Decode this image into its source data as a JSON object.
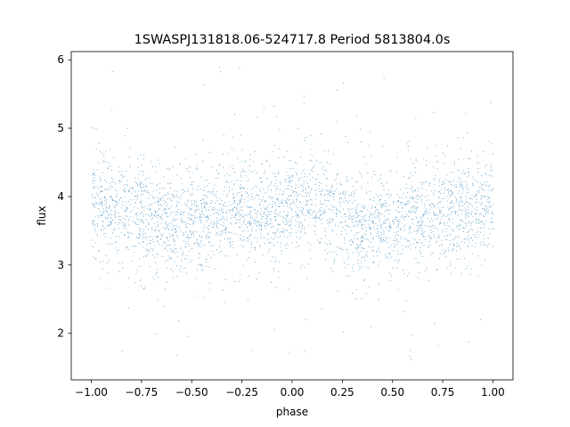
{
  "chart_data": {
    "type": "scatter",
    "title": "1SWASPJ131818.06-524717.8 Period 5813804.0s",
    "xlabel": "phase",
    "ylabel": "flux",
    "xlim": [
      -1.1,
      1.1
    ],
    "ylim": [
      1.32,
      6.12
    ],
    "xticks": [
      -1.0,
      -0.75,
      -0.5,
      -0.25,
      0.0,
      0.25,
      0.5,
      0.75,
      1.0
    ],
    "xtick_labels": [
      "−1.00",
      "−0.75",
      "−0.50",
      "−0.25",
      "0.00",
      "0.25",
      "0.50",
      "0.75",
      "1.00"
    ],
    "yticks": [
      2,
      3,
      4,
      5,
      6
    ],
    "ytick_labels": [
      "2",
      "3",
      "4",
      "5",
      "6"
    ],
    "grid": false,
    "legend": "none",
    "color": "#1f77b4",
    "series": [
      {
        "phase_range": [
          -1.0,
          1.0
        ],
        "baseline_profile": [
          {
            "x": -1.0,
            "y": 3.85
          },
          {
            "x": -0.9,
            "y": 3.9
          },
          {
            "x": -0.8,
            "y": 3.8
          },
          {
            "x": -0.7,
            "y": 3.65
          },
          {
            "x": -0.6,
            "y": 3.6
          },
          {
            "x": -0.5,
            "y": 3.6
          },
          {
            "x": -0.4,
            "y": 3.7
          },
          {
            "x": -0.3,
            "y": 3.75
          },
          {
            "x": -0.2,
            "y": 3.8
          },
          {
            "x": -0.1,
            "y": 3.75
          },
          {
            "x": 0.0,
            "y": 3.9
          },
          {
            "x": 0.1,
            "y": 3.9
          },
          {
            "x": 0.2,
            "y": 3.8
          },
          {
            "x": 0.3,
            "y": 3.65
          },
          {
            "x": 0.4,
            "y": 3.6
          },
          {
            "x": 0.5,
            "y": 3.6
          },
          {
            "x": 0.6,
            "y": 3.7
          },
          {
            "x": 0.7,
            "y": 3.75
          },
          {
            "x": 0.8,
            "y": 3.8
          },
          {
            "x": 0.9,
            "y": 3.85
          },
          {
            "x": 1.0,
            "y": 3.85
          }
        ],
        "flux_range": [
          1.55,
          5.95
        ]
      }
    ]
  }
}
